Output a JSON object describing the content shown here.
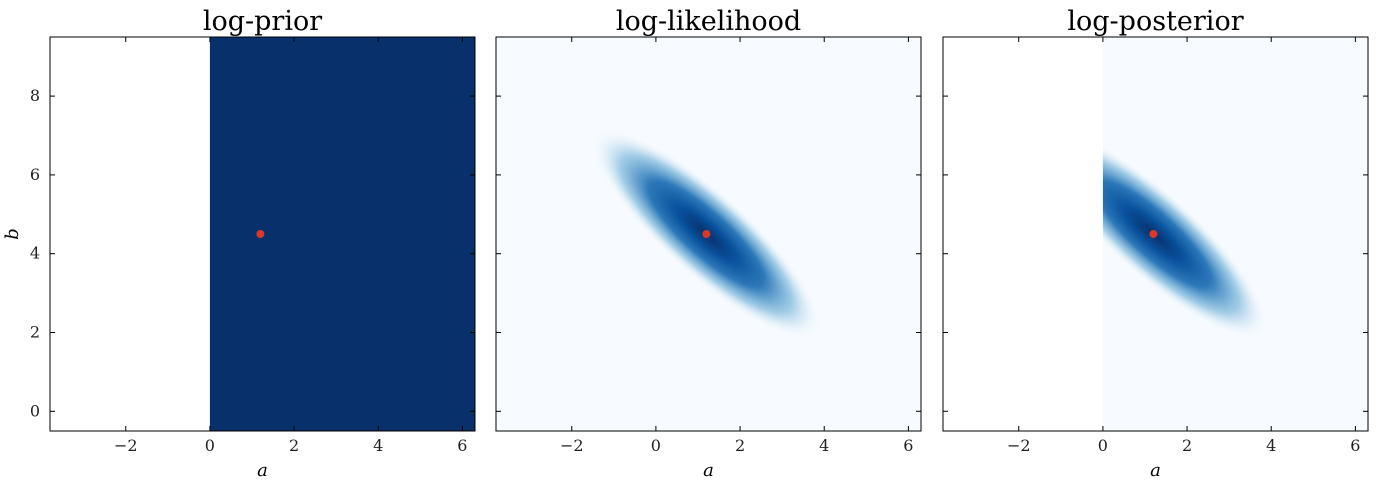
{
  "chart_data": [
    {
      "type": "heatmap",
      "title": "log-prior",
      "xlabel": "a",
      "ylabel": "b",
      "xlim": [
        -3.8,
        6.3
      ],
      "ylim": [
        -0.5,
        9.5
      ],
      "xticks": [
        -2,
        0,
        2,
        4,
        6
      ],
      "yticks": [
        0,
        2,
        4,
        6,
        8
      ],
      "colormap": "Blues",
      "field": "uniform prior: constant for a >= 0, undefined (blank) for a < 0",
      "support_a_min": 0,
      "marker": {
        "a": 1.2,
        "b": 4.5,
        "color": "#d8392b"
      }
    },
    {
      "type": "heatmap",
      "title": "log-likelihood",
      "xlabel": "a",
      "xlim": [
        -3.8,
        6.3
      ],
      "ylim": [
        -0.5,
        9.5
      ],
      "xticks": [
        -2,
        0,
        2,
        4,
        6
      ],
      "yticks": [
        0,
        2,
        4,
        6,
        8
      ],
      "colormap": "Blues",
      "field": "elliptical Gaussian peak with negative correlation",
      "peak": {
        "a": 1.2,
        "b": 4.5
      },
      "marker": {
        "a": 1.2,
        "b": 4.5,
        "color": "#d8392b"
      }
    },
    {
      "type": "heatmap",
      "title": "log-posterior",
      "xlabel": "a",
      "xlim": [
        -3.8,
        6.3
      ],
      "ylim": [
        -0.5,
        9.5
      ],
      "xticks": [
        -2,
        0,
        2,
        4,
        6
      ],
      "yticks": [
        0,
        2,
        4,
        6,
        8
      ],
      "colormap": "Blues",
      "field": "log-likelihood truncated to a >= 0",
      "support_a_min": 0,
      "peak": {
        "a": 1.2,
        "b": 4.5
      },
      "marker": {
        "a": 1.2,
        "b": 4.5,
        "color": "#d8392b"
      }
    }
  ],
  "colors": {
    "dark_blue": "#08306b",
    "light_blue": "#f7fbff",
    "marker": "#d8392b"
  }
}
